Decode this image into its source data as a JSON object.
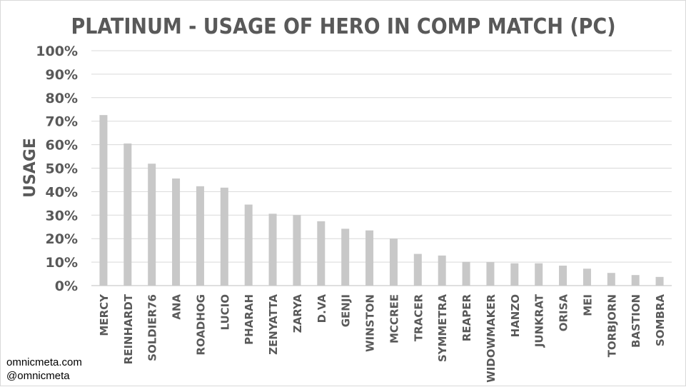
{
  "chart_data": {
    "type": "bar",
    "title": "PLATINUM - USAGE OF HERO IN COMP MATCH (PC)",
    "xlabel": "",
    "ylabel": "USAGE",
    "ylim": [
      0,
      100
    ],
    "yticks": [
      "0%",
      "10%",
      "20%",
      "30%",
      "40%",
      "50%",
      "60%",
      "70%",
      "80%",
      "90%",
      "100%"
    ],
    "grid": true,
    "bar_color": "#c8c8c8",
    "categories": [
      "MERCY",
      "REINHARDT",
      "SOLDIER76",
      "ANA",
      "ROADHOG",
      "LUCIO",
      "PHARAH",
      "ZENYATTA",
      "ZARYA",
      "D.VA",
      "GENJI",
      "WINSTON",
      "MCCREE",
      "TRACER",
      "SYMMETRA",
      "REAPER",
      "WIDOWMAKER",
      "HANZO",
      "JUNKRAT",
      "ORISA",
      "MEI",
      "TORBJORN",
      "BASTION",
      "SOMBRA"
    ],
    "values": [
      72.6,
      60.5,
      51.9,
      45.6,
      42.3,
      41.7,
      34.5,
      30.6,
      30.0,
      27.4,
      24.2,
      23.5,
      20.0,
      13.5,
      12.8,
      10.1,
      10.0,
      9.5,
      9.5,
      8.5,
      7.2,
      5.4,
      4.5,
      3.7
    ]
  },
  "credits": {
    "line1": "omnicmeta.com",
    "line2": "@omnicmeta"
  }
}
